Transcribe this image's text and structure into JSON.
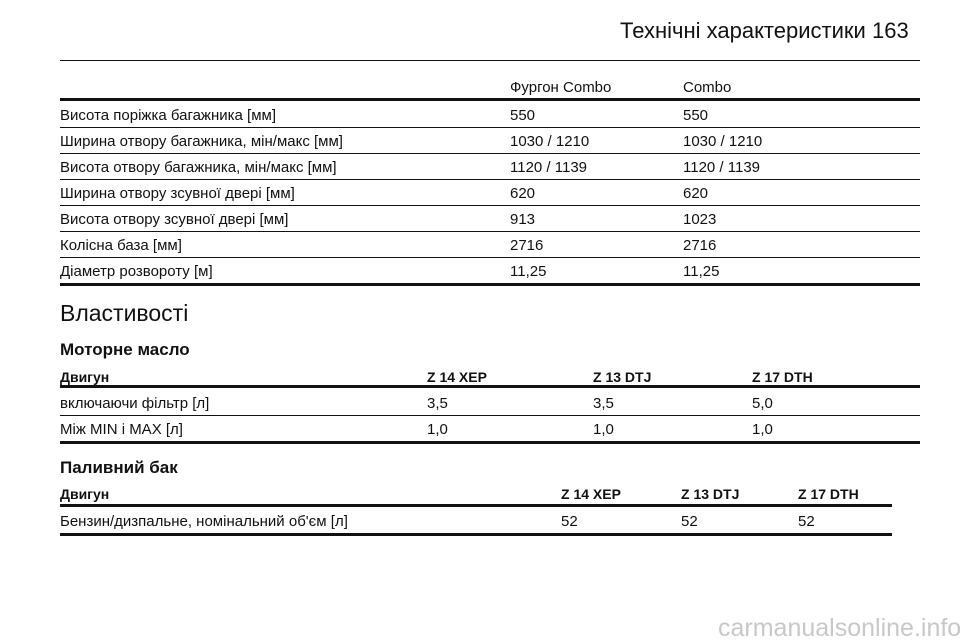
{
  "header": {
    "title": "Технічні характеристики",
    "page_number": "163"
  },
  "dimensions_table": {
    "columns": [
      "Фургон Combo",
      "Combo"
    ],
    "rows": [
      [
        "Висота поріжка багажника [мм]",
        "550",
        "550"
      ],
      [
        "Ширина отвору багажника, мін/макс [мм]",
        "1030 / 1210",
        "1030 / 1210"
      ],
      [
        "Висота отвору багажника, мін/макс [мм]",
        "1120 / 1139",
        "1120 / 1139"
      ],
      [
        "Ширина отвору зсувної дверi [мм]",
        "620",
        "620"
      ],
      [
        "Висота отвору зсувної дверi [мм]",
        "913",
        "1023"
      ],
      [
        "Колісна база [мм]",
        "2716",
        "2716"
      ],
      [
        "Діаметр розвороту [м]",
        "11,25",
        "11,25"
      ]
    ]
  },
  "section_title": "Властивості",
  "engine_oil": {
    "title": "Моторне масло",
    "columns": [
      "Двигун",
      "Z 14 XEP",
      "Z 13 DTJ",
      "Z 17 DTH"
    ],
    "rows": [
      [
        "включаючи фільтр [л]",
        "3,5",
        "3,5",
        "5,0"
      ],
      [
        "Між MIN і MAX [л]",
        "1,0",
        "1,0",
        "1,0"
      ]
    ]
  },
  "fuel_tank": {
    "title": "Паливний бак",
    "columns": [
      "Двигун",
      "Z 14 XEP",
      "Z 13 DTJ",
      "Z 17 DTH"
    ],
    "rows": [
      [
        "Бензин/дизпальне, номінальний об'єм [л]",
        "52",
        "52",
        "52"
      ]
    ]
  },
  "watermark": "carmanualsonline.info"
}
